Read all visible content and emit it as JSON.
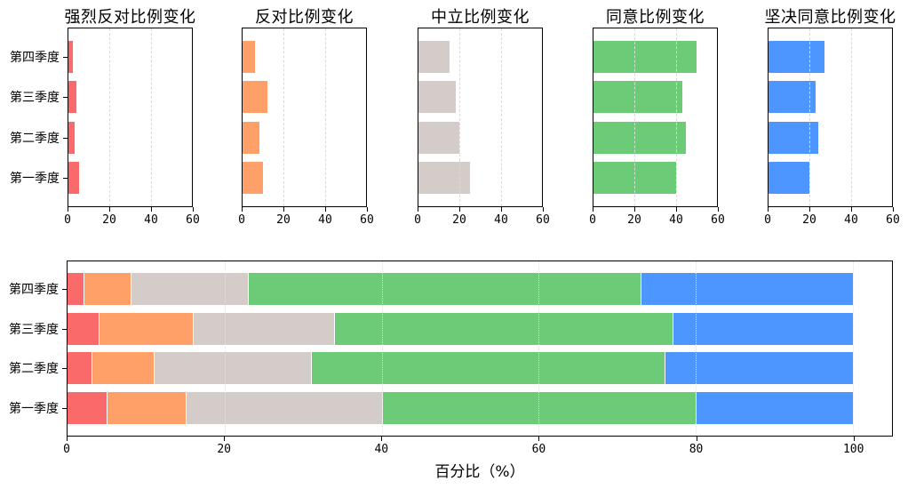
{
  "figure": {
    "background": "#ffffff",
    "xlabel_bottom": "百分比（%）"
  },
  "chart_data": [
    {
      "type": "bar",
      "orientation": "horizontal",
      "title": "强烈反对比例变化",
      "categories": [
        "第四季度",
        "第三季度",
        "第二季度",
        "第一季度"
      ],
      "values": [
        2,
        4,
        3,
        5
      ],
      "color": "#FA6A6A",
      "xlim": [
        0,
        60
      ],
      "xticks": [
        0,
        20,
        40,
        60
      ],
      "grid": "dashed-vertical",
      "show_y_labels": true,
      "legend": "none"
    },
    {
      "type": "bar",
      "orientation": "horizontal",
      "title": "反对比例变化",
      "categories": [
        "第四季度",
        "第三季度",
        "第二季度",
        "第一季度"
      ],
      "values": [
        6,
        12,
        8,
        10
      ],
      "color": "#FFA069",
      "xlim": [
        0,
        60
      ],
      "xticks": [
        0,
        20,
        40,
        60
      ],
      "grid": "dashed-vertical",
      "show_y_labels": false,
      "legend": "none"
    },
    {
      "type": "bar",
      "orientation": "horizontal",
      "title": "中立比例变化",
      "categories": [
        "第四季度",
        "第三季度",
        "第二季度",
        "第一季度"
      ],
      "values": [
        15,
        18,
        20,
        25
      ],
      "color": "#D3CCC9",
      "xlim": [
        0,
        60
      ],
      "xticks": [
        0,
        20,
        40,
        60
      ],
      "grid": "dashed-vertical",
      "show_y_labels": false,
      "legend": "none"
    },
    {
      "type": "bar",
      "orientation": "horizontal",
      "title": "同意比例变化",
      "categories": [
        "第四季度",
        "第三季度",
        "第二季度",
        "第一季度"
      ],
      "values": [
        50,
        43,
        45,
        40
      ],
      "color": "#6BCB77",
      "xlim": [
        0,
        60
      ],
      "xticks": [
        0,
        20,
        40,
        60
      ],
      "grid": "dashed-vertical",
      "show_y_labels": false,
      "legend": "none"
    },
    {
      "type": "bar",
      "orientation": "horizontal",
      "title": "坚决同意比例变化",
      "categories": [
        "第四季度",
        "第三季度",
        "第二季度",
        "第一季度"
      ],
      "values": [
        27,
        23,
        24,
        20
      ],
      "color": "#4D96FF",
      "xlim": [
        0,
        60
      ],
      "xticks": [
        0,
        20,
        40,
        60
      ],
      "grid": "dashed-vertical",
      "show_y_labels": false,
      "legend": "none"
    },
    {
      "type": "stacked-bar",
      "orientation": "horizontal",
      "title": "",
      "categories": [
        "第四季度",
        "第三季度",
        "第二季度",
        "第一季度"
      ],
      "series": [
        {
          "name": "强烈反对",
          "color": "#FA6A6A",
          "values": [
            2,
            4,
            3,
            5
          ]
        },
        {
          "name": "反对",
          "color": "#FFA069",
          "values": [
            6,
            12,
            8,
            10
          ]
        },
        {
          "name": "中立",
          "color": "#D3CCC9",
          "values": [
            15,
            18,
            20,
            25
          ]
        },
        {
          "name": "同意",
          "color": "#6BCB77",
          "values": [
            50,
            43,
            45,
            40
          ]
        },
        {
          "name": "坚决同意",
          "color": "#4D96FF",
          "values": [
            27,
            23,
            24,
            20
          ]
        }
      ],
      "xlabel": "百分比（%）",
      "xlim": [
        0,
        105
      ],
      "xticks": [
        0,
        20,
        40,
        60,
        80,
        100
      ],
      "grid": "dotted-vertical",
      "show_y_labels": true,
      "legend": "none"
    }
  ]
}
